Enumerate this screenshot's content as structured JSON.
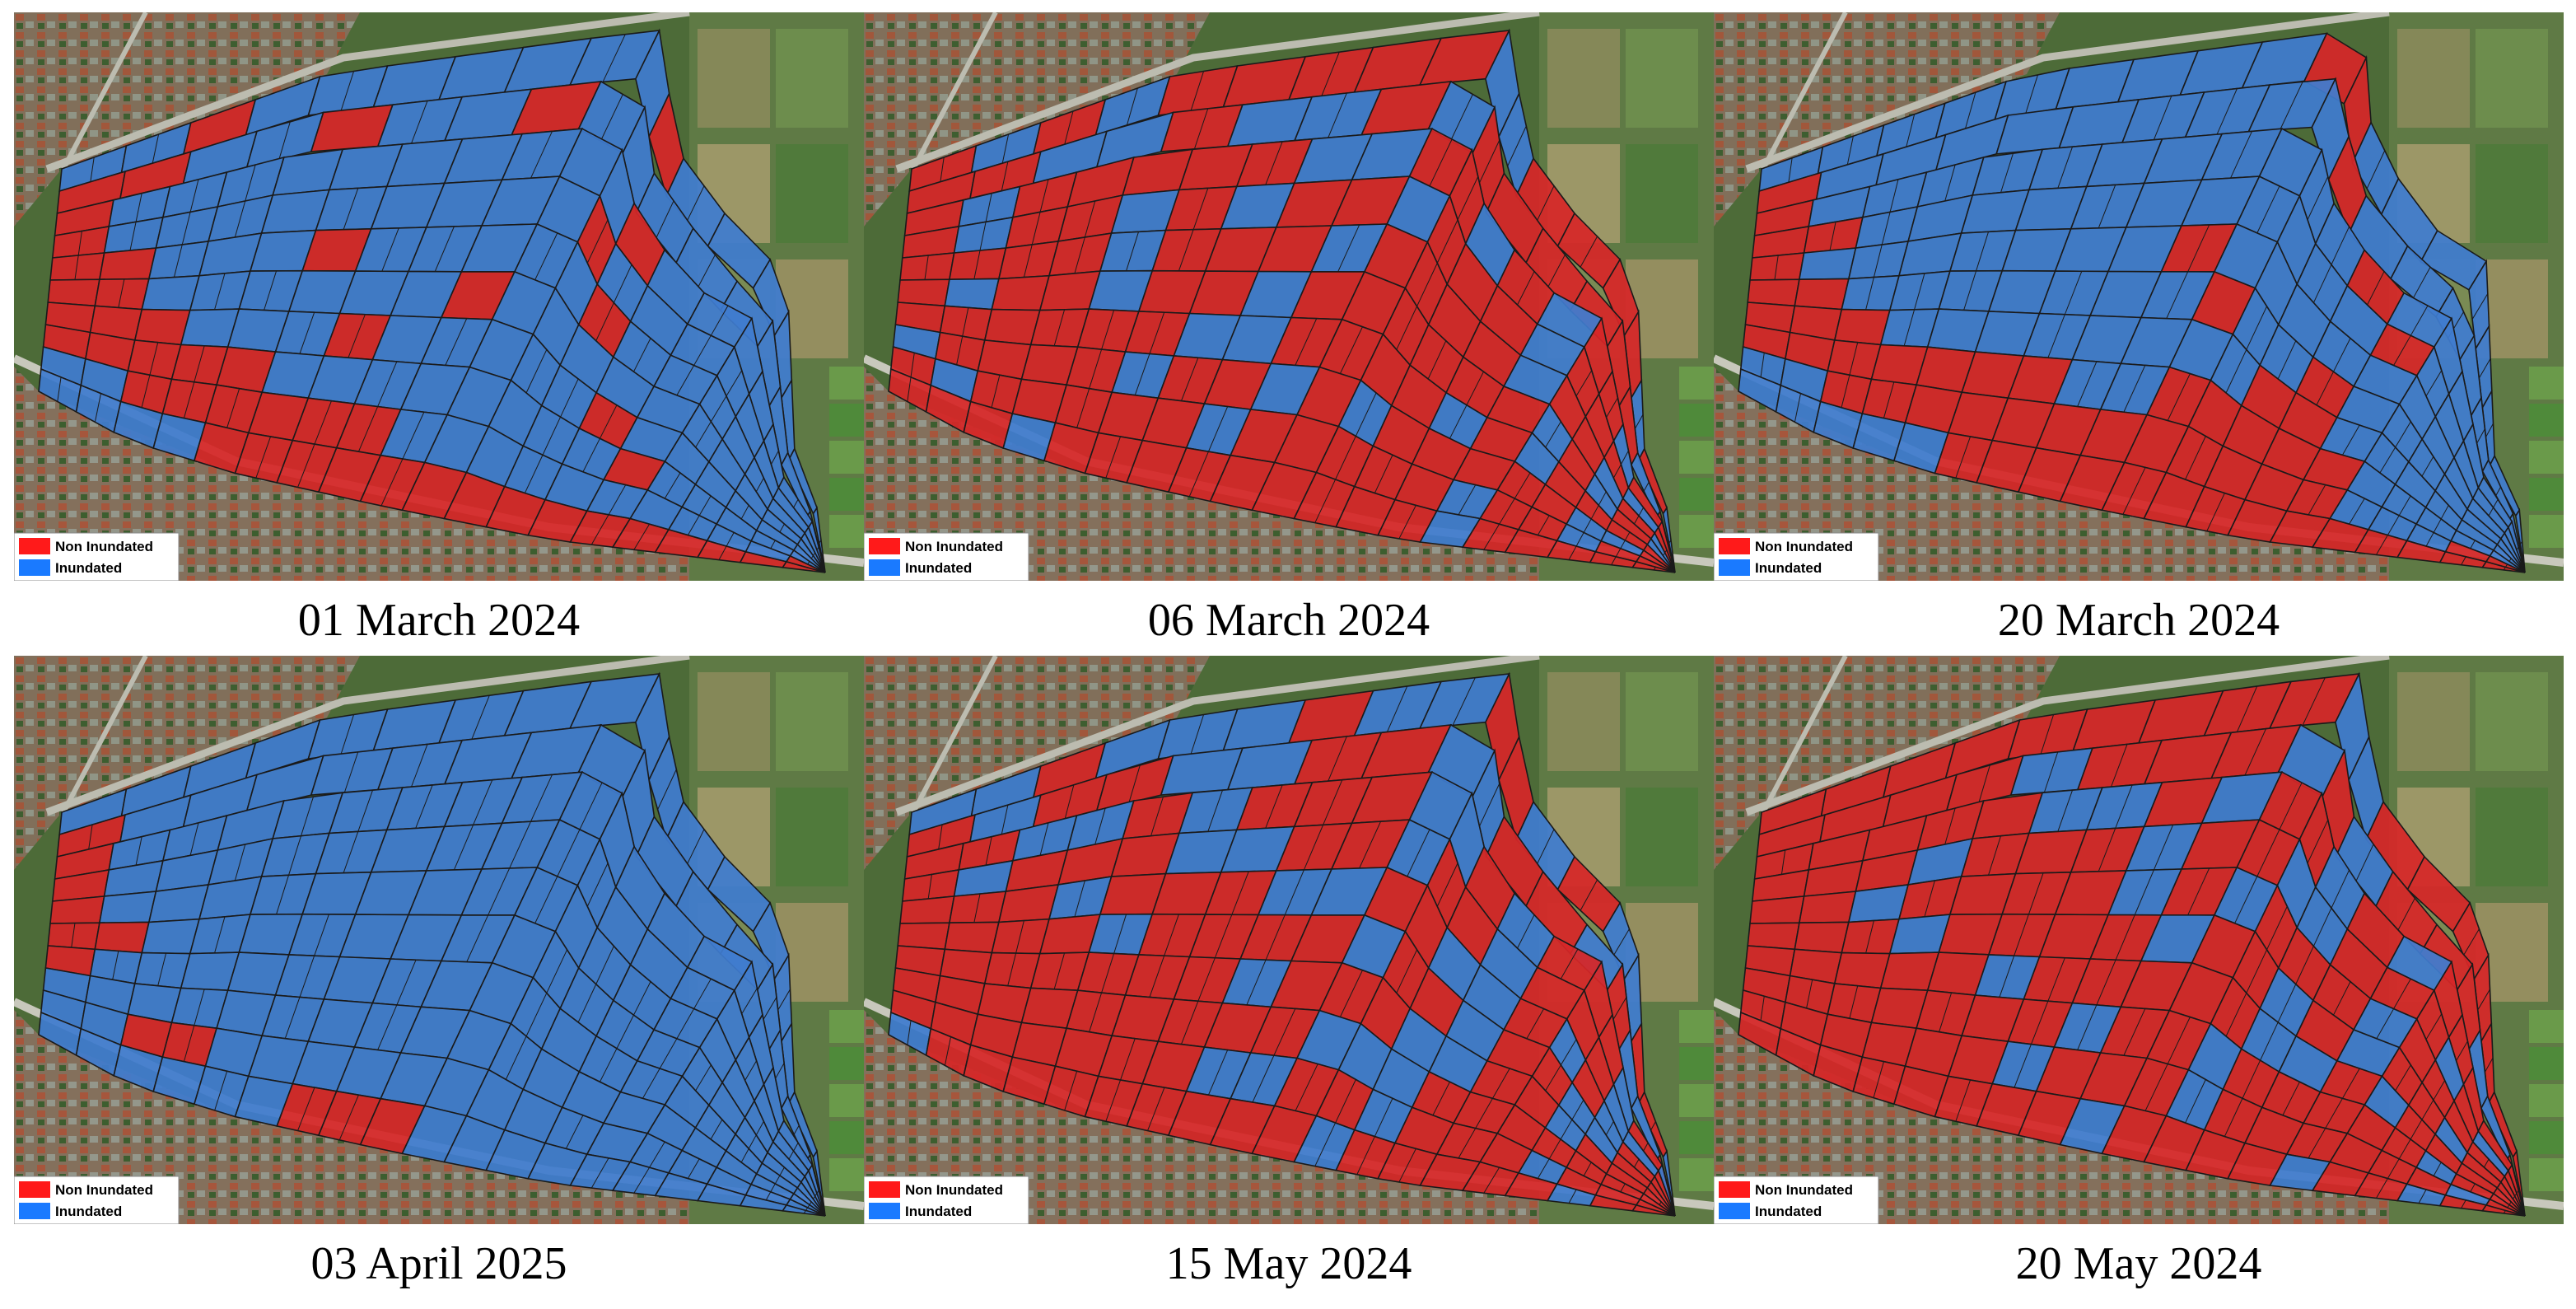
{
  "colors": {
    "non_inundated": "#d62728",
    "inundated": "#3f7ccf",
    "legend_non_inundated": "#ff1a1a",
    "legend_inundated": "#1a7aff",
    "grid_line": "#1a1a1a"
  },
  "legend": {
    "non_inundated_label": "Non Inundated",
    "inundated_label": "Inundated"
  },
  "panels": [
    {
      "caption": "01 March 2024",
      "grid": [
        "..X.......X.......",
        "XX..X..X.........",
        "X..........X.......",
        "X.........X........",
        "XX...X.....X.......",
        "XX......X..........",
        "XXX...X.....X......",
        "XXXXX........X.....",
        "..XXXXXX..........X",
        "....XXXXXXXXXXXXXXX"
      ]
    },
    {
      "caption": "06 March 2024",
      "grid": [
        "X.X.XXXXX..XXXX.X.",
        "XX..X..X.XXXXXX.X",
        "X.XXXXX..XX.X.XX.XX",
        "X.XX.X.XX.XXX.XXX.X",
        "XXXX.XXX.XXXX.XX.X.",
        "X.XX.XX.XXXXXX.X.X.",
        "XXXXXX..XXXX.X.XXXX",
        ".XXXX.XX.X.XXXXX..X",
        "X.XXXXX.XXXXX.XX.XX",
        "XXX.XXXXXXXXX.XXXXX"
      ]
    },
    {
      "caption": "20 March 2024",
      "grid": [
        ".........XX........",
        "X.........X.......",
        "X...........X......",
        "XX...........X.....",
        "X.......X..........",
        "XX.......X..X......",
        "XXX........XX......",
        "XXXXXXX..XXXXX.....",
        "..XXXXXXXXXXXX...XX",
        ".....XXXXXXXXXXXXXX"
      ]
    },
    {
      "caption": "03 April 2025",
      "grid": [
        "..................",
        "X................",
        "X..................",
        "X..................",
        "X..................",
        "XX.................",
        "X..................",
        "...................",
        "..XX...............",
        "......XXX.........."
      ]
    },
    {
      "caption": "15 May 2024",
      "grid": [
        "..X...X..XX.X..XX.",
        "X.XX..XX..XX.X..X",
        "XX..X.XXX..X.XXX.X.",
        "X.XXX..XX.XX.XXX..X",
        "XXX.XXX..XX..X.X.XX",
        "XXXX.XXXX.XX.XX..XX",
        "XXXXXXX.XXX..XX.XXX",
        "XXXXXXXXX...XXXXXXX",
        "XXXXXXX..XX.XXX.XXX",
        ".XXXXXXXXX.XXXXX.XX"
      ]
    },
    {
      "caption": "20 May 2024",
      "grid": [
        "XXXXXXXXX..XXXXXXX",
        "XXXX.XXX.X.XXX..X",
        "XXXXX..X.XX.X.XXXXX",
        "XXX.XXX.XX..XXX.X.X",
        "XX.XXXX.X.XXX.XXXXX",
        "XXX.XXXX.XX.X.XX.XX",
        "XXXXX.XXXXX..X.XXXX",
        "XXXXXXX.XX.XXXXX.XX",
        "XXXXXX.XXX.XXXXXX.X",
        "XXXXXXXX.XXXX.XX.XX"
      ]
    }
  ]
}
